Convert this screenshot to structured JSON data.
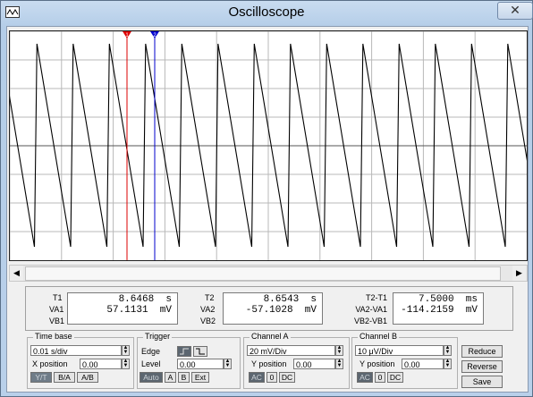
{
  "window": {
    "title": "Oscilloscope",
    "close_glyph": "✕"
  },
  "cursors": {
    "c1_label": "1",
    "c2_label": "2",
    "c1_color": "#dd0000",
    "c2_color": "#0000cc"
  },
  "readouts": {
    "col1": {
      "rows": [
        "T1",
        "VA1",
        "VB1"
      ],
      "values": [
        "8.6468  s",
        "57.1131  mV",
        ""
      ]
    },
    "col2": {
      "rows": [
        "T2",
        "VA2",
        "VB2"
      ],
      "values": [
        "8.6543  s",
        "-57.1028  mV",
        ""
      ]
    },
    "col3": {
      "rows": [
        "T2-T1",
        "VA2-VA1",
        "VB2-VB1"
      ],
      "values": [
        "7.5000  ms",
        "-114.2159  mV",
        ""
      ]
    }
  },
  "timebase": {
    "title": "Time base",
    "scale": "0.01 s/div",
    "xpos_label": "X position",
    "xpos": "0.00",
    "modes": [
      "Y/T",
      "B/A",
      "A/B"
    ]
  },
  "trigger": {
    "title": "Trigger",
    "edge_label": "Edge",
    "level_label": "Level",
    "level": "0.00",
    "sources": [
      "Auto",
      "A",
      "B",
      "Ext"
    ]
  },
  "channel_a": {
    "title": "Channel A",
    "scale": "20 mV/Div",
    "ypos_label": "Y position",
    "ypos": "0.00",
    "coupling": [
      "AC",
      "0",
      "DC"
    ]
  },
  "channel_b": {
    "title": "Channel B",
    "scale": "10 μV/Div",
    "ypos_label": "Y position",
    "ypos": "0.00",
    "coupling": [
      "AC",
      "0",
      "DC"
    ]
  },
  "side_buttons": [
    "Reduce",
    "Reverse",
    "Save"
  ],
  "colors": {
    "trace": "#000000",
    "grid": "#b8b8b8",
    "center": "#555555"
  }
}
